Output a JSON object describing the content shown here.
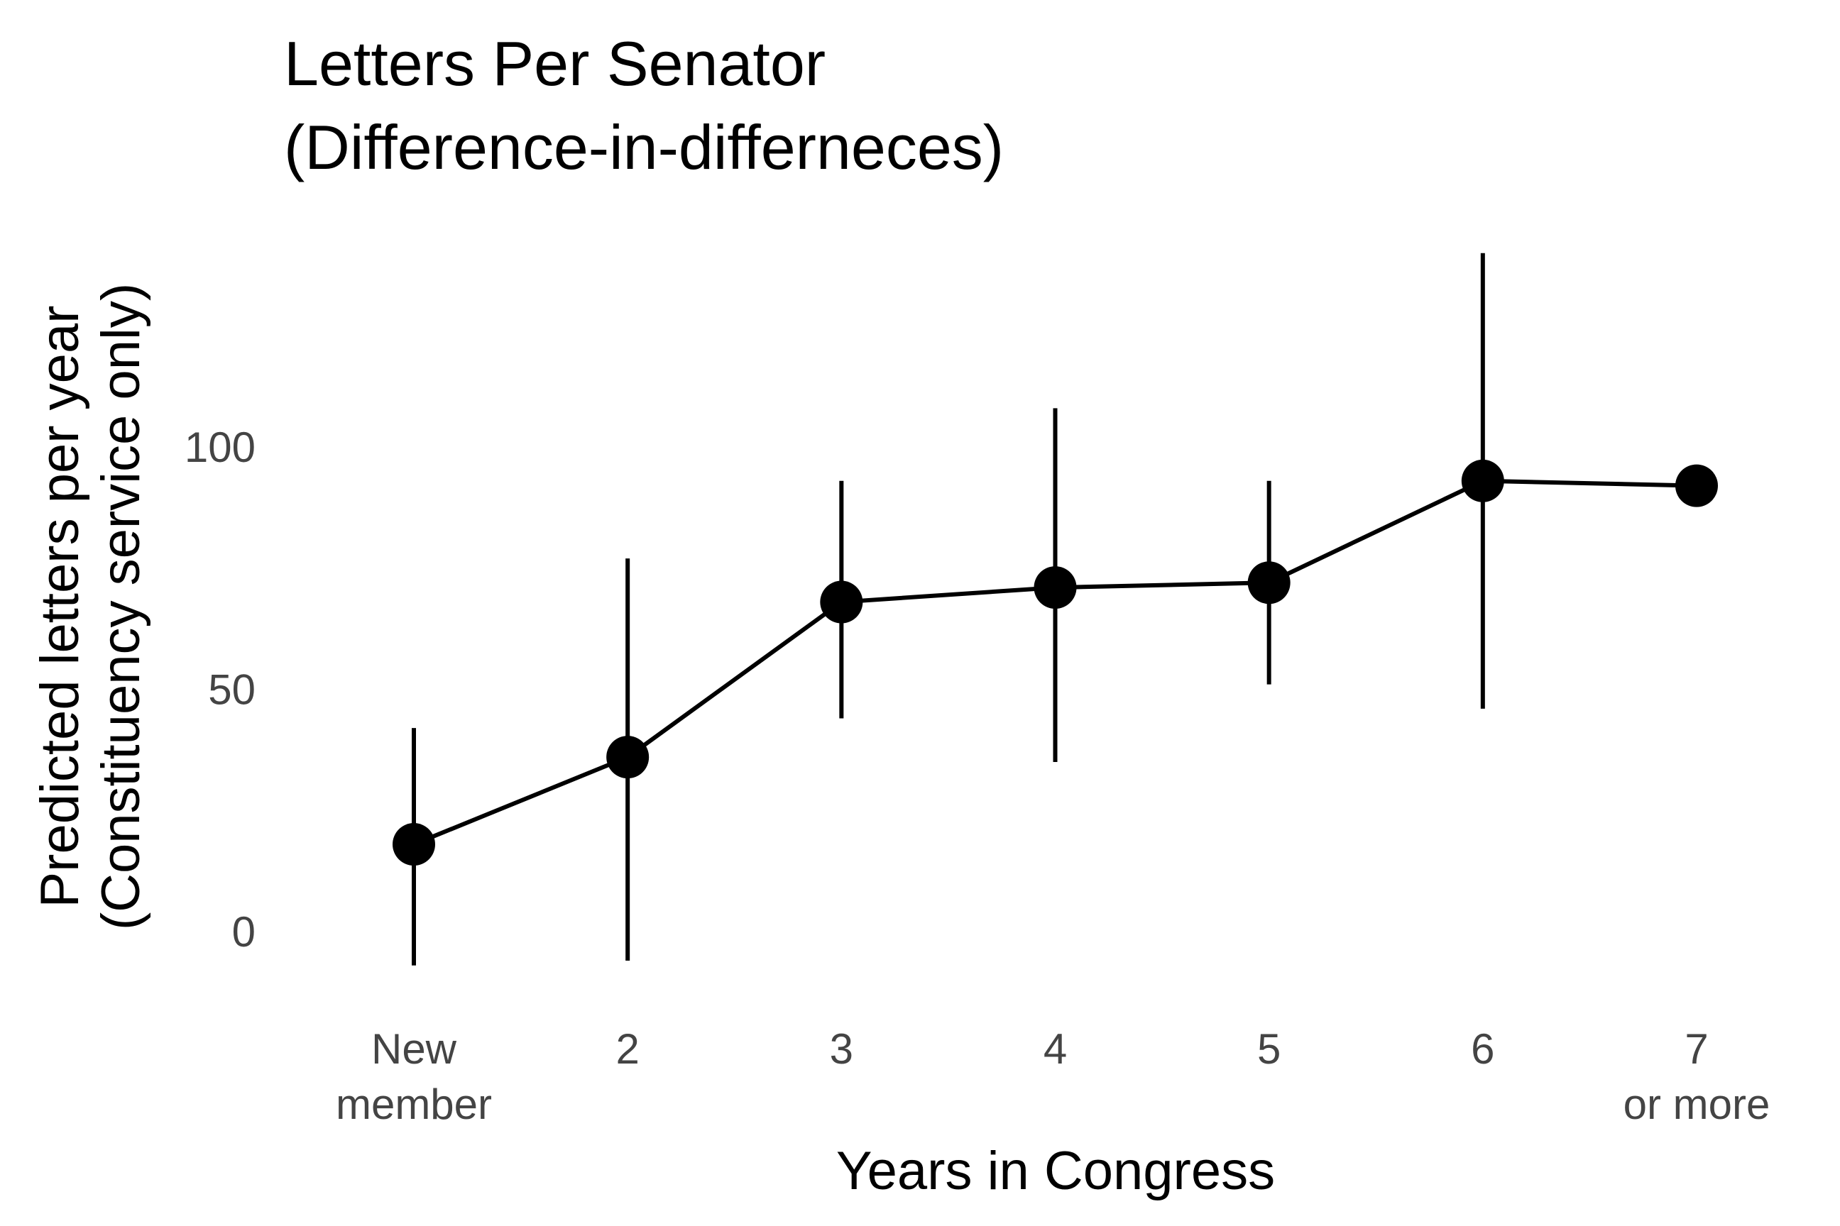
{
  "chart_data": {
    "type": "line",
    "title_lines": [
      "Letters Per Senator",
      "(Difference-in-differneces)"
    ],
    "xlabel": "Years in Congress",
    "ylabel_lines": [
      "Predicted letters per year",
      "(Constituency service only)"
    ],
    "categories": [
      [
        "New",
        "member"
      ],
      [
        "2"
      ],
      [
        "3"
      ],
      [
        "4"
      ],
      [
        "5"
      ],
      [
        "6"
      ],
      [
        "7",
        "or more"
      ]
    ],
    "y_ticks": [
      0,
      50,
      100
    ],
    "y_tick_labels": [
      "0",
      "50",
      "100"
    ],
    "ylim": [
      -20,
      140
    ],
    "grid": false,
    "series": [
      {
        "values": [
          18,
          36,
          68,
          71,
          72,
          93,
          92
        ],
        "lower": [
          -7,
          -6,
          44,
          35,
          51,
          46,
          null
        ],
        "upper": [
          42,
          77,
          93,
          108,
          93,
          140,
          null
        ]
      }
    ],
    "colors": {
      "line": "#000000",
      "point": "#000000",
      "tick_text": "#444444"
    }
  }
}
